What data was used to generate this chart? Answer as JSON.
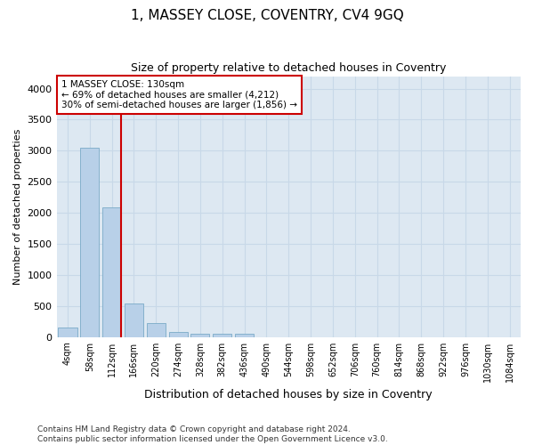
{
  "title": "1, MASSEY CLOSE, COVENTRY, CV4 9GQ",
  "subtitle": "Size of property relative to detached houses in Coventry",
  "xlabel": "Distribution of detached houses by size in Coventry",
  "ylabel": "Number of detached properties",
  "footer_line1": "Contains HM Land Registry data © Crown copyright and database right 2024.",
  "footer_line2": "Contains public sector information licensed under the Open Government Licence v3.0.",
  "bar_labels": [
    "4sqm",
    "58sqm",
    "112sqm",
    "166sqm",
    "220sqm",
    "274sqm",
    "328sqm",
    "382sqm",
    "436sqm",
    "490sqm",
    "544sqm",
    "598sqm",
    "652sqm",
    "706sqm",
    "760sqm",
    "814sqm",
    "868sqm",
    "922sqm",
    "976sqm",
    "1030sqm",
    "1084sqm"
  ],
  "bar_values": [
    150,
    3050,
    2080,
    540,
    220,
    75,
    55,
    50,
    50,
    0,
    0,
    0,
    0,
    0,
    0,
    0,
    0,
    0,
    0,
    0,
    0
  ],
  "bar_color": "#b8d0e8",
  "bar_edge_color": "#7aaac8",
  "vline_color": "#cc0000",
  "annotation_text": "1 MASSEY CLOSE: 130sqm\n← 69% of detached houses are smaller (4,212)\n30% of semi-detached houses are larger (1,856) →",
  "annotation_box_facecolor": "#ffffff",
  "annotation_box_edgecolor": "#cc0000",
  "ylim": [
    0,
    4200
  ],
  "yticks": [
    0,
    500,
    1000,
    1500,
    2000,
    2500,
    3000,
    3500,
    4000
  ],
  "grid_color": "#c8d8e8",
  "fig_bg_color": "#ffffff",
  "plot_bg_color": "#dde8f2"
}
